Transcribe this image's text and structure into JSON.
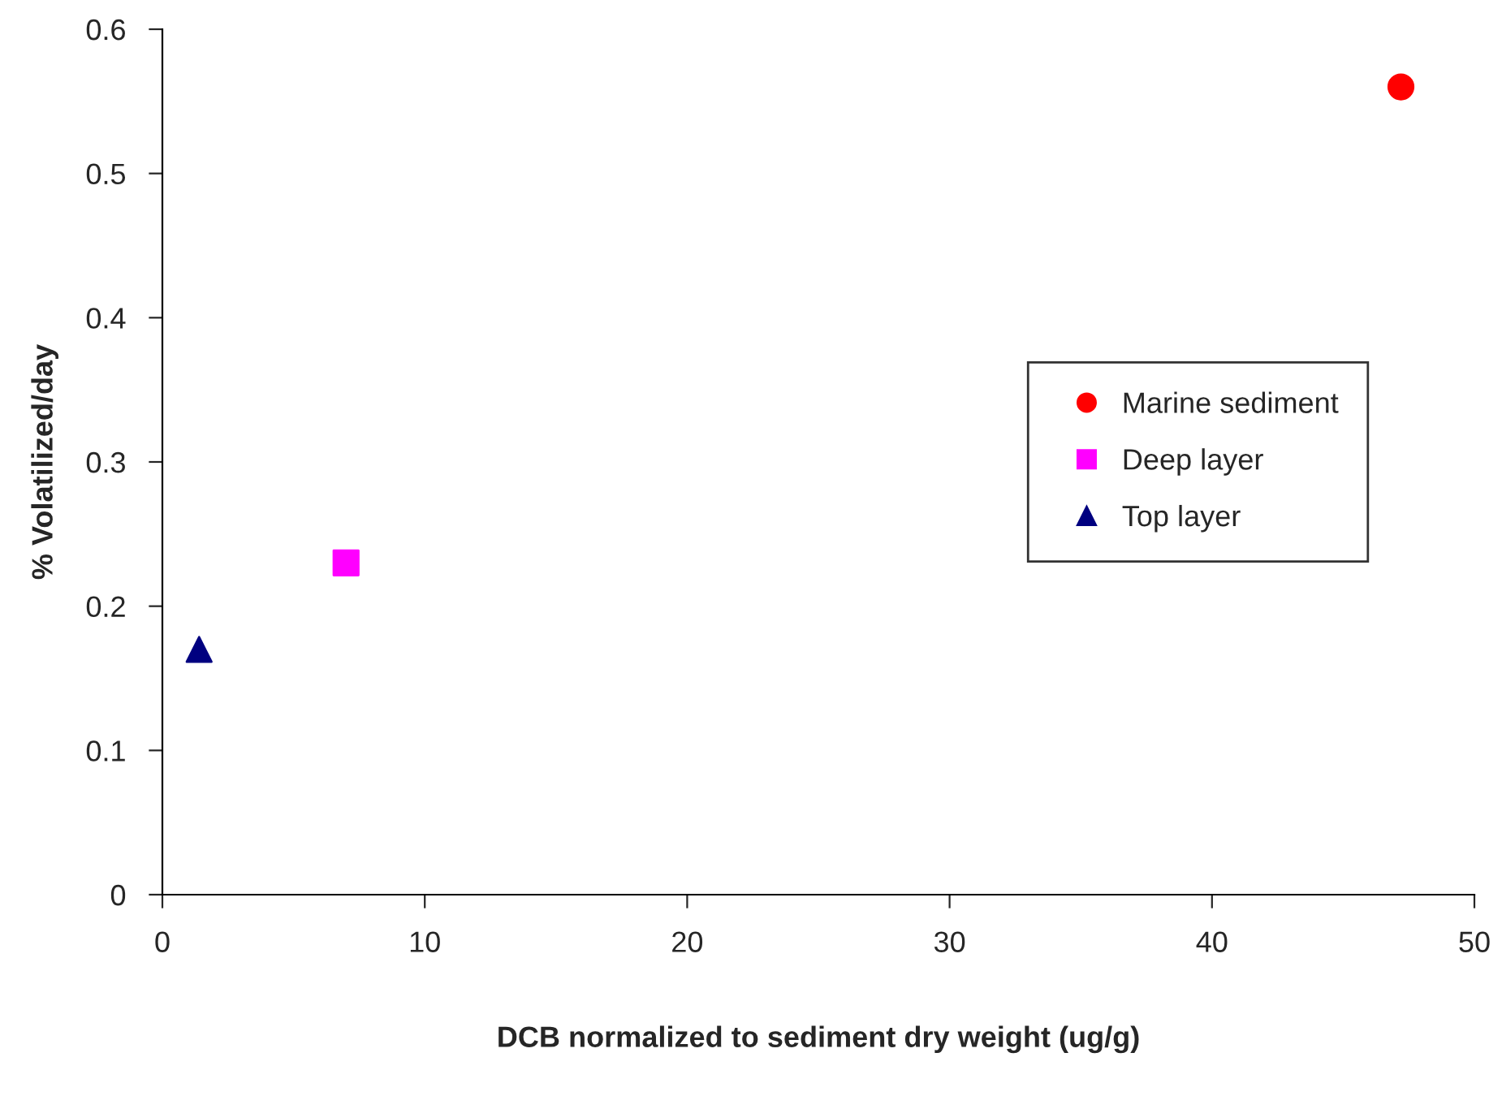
{
  "chart_data": {
    "type": "scatter",
    "xlabel": "DCB normalized to sediment dry weight (ug/g)",
    "ylabel": "% Volatilized/day",
    "series": [
      {
        "name": "Marine sediment",
        "color": "#ff0000",
        "marker": "circle",
        "x": [
          47.2
        ],
        "values": [
          0.56
        ]
      },
      {
        "name": "Deep layer",
        "color": "#ff00ff",
        "marker": "square",
        "x": [
          7.0
        ],
        "values": [
          0.23
        ]
      },
      {
        "name": "Top layer",
        "color": "#000080",
        "marker": "triangle",
        "x": [
          1.4
        ],
        "values": [
          0.17
        ]
      }
    ],
    "xlim": [
      0,
      50
    ],
    "xticks": [
      0,
      10,
      20,
      30,
      40,
      50
    ],
    "ylim": [
      0,
      0.6
    ],
    "yticks": [
      0,
      0.1,
      0.2,
      0.3,
      0.4,
      0.5,
      0.6
    ],
    "grid": false,
    "legend": "right"
  }
}
